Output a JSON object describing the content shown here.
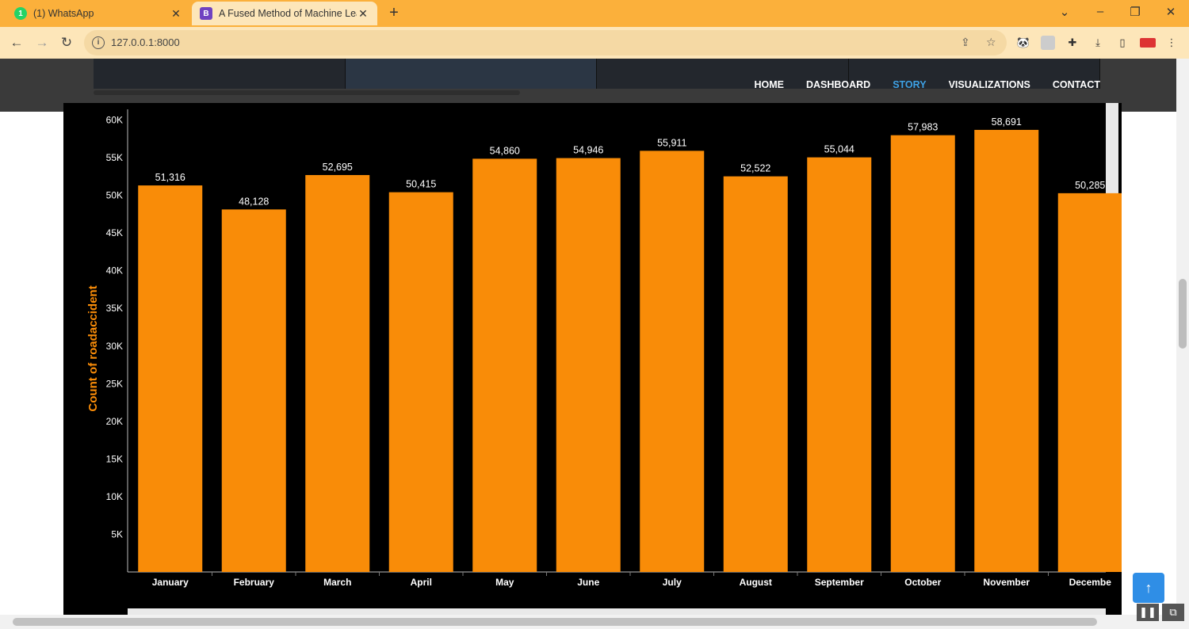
{
  "browser": {
    "tabs": [
      {
        "title": "(1) WhatsApp",
        "favicon": "1"
      },
      {
        "title": "A Fused Method of Machine Lear",
        "favicon": "B"
      }
    ],
    "url": "127.0.0.1:8000"
  },
  "site_nav": {
    "links": [
      "HOME",
      "DASHBOARD",
      "STORY",
      "VISUALIZATIONS",
      "CONTACT"
    ],
    "active": "STORY"
  },
  "chart_data": {
    "type": "bar",
    "ylabel": "Count of roadaccident",
    "categories": [
      "January",
      "February",
      "March",
      "April",
      "May",
      "June",
      "July",
      "August",
      "September",
      "October",
      "November",
      "Decembe"
    ],
    "values": [
      51316,
      48128,
      52695,
      50415,
      54860,
      54946,
      55911,
      52522,
      55044,
      57983,
      58691,
      50285
    ],
    "data_labels": [
      "51,316",
      "48,128",
      "52,695",
      "50,415",
      "54,860",
      "54,946",
      "55,911",
      "52,522",
      "55,044",
      "57,983",
      "58,691",
      "50,285"
    ],
    "yticks": [
      5000,
      10000,
      15000,
      20000,
      25000,
      30000,
      35000,
      40000,
      45000,
      50000,
      55000,
      60000
    ],
    "ytick_labels": [
      "5K",
      "10K",
      "15K",
      "20K",
      "25K",
      "30K",
      "35K",
      "40K",
      "45K",
      "50K",
      "55K",
      "60K"
    ],
    "ylim": [
      0,
      61000
    ],
    "bar_color": "#f98c08",
    "label_color": "#ffffff",
    "ylabel_color": "#f98c08"
  }
}
